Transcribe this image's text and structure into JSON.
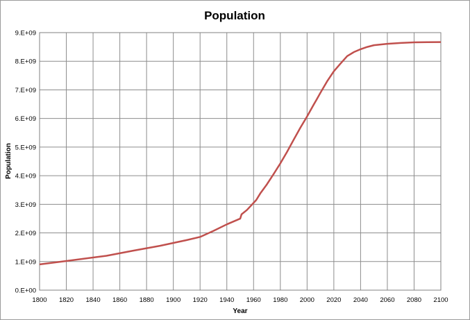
{
  "chart_data": {
    "type": "line",
    "title": "Population",
    "xlabel": "Year",
    "ylabel": "Population",
    "xlim": [
      1800,
      2100
    ],
    "ylim": [
      0,
      9000000000
    ],
    "grid": true,
    "legend": "none",
    "x_ticks": [
      "1800",
      "1820",
      "1840",
      "1860",
      "1880",
      "1900",
      "1920",
      "1940",
      "1960",
      "1980",
      "2000",
      "2020",
      "2040",
      "2060",
      "2080",
      "2100"
    ],
    "y_ticks": [
      "0.E+00",
      "1.E+09",
      "2.E+09",
      "3.E+09",
      "4.E+09",
      "5.E+09",
      "6.E+09",
      "7.E+09",
      "8.E+09",
      "9.E+09"
    ],
    "series": [
      {
        "color": "#c0504d",
        "x": [
          1800,
          1820,
          1850,
          1870,
          1890,
          1900,
          1910,
          1920,
          1930,
          1940,
          1950,
          1951,
          1955,
          1960,
          1962,
          1965,
          1970,
          1975,
          1980,
          1985,
          1990,
          1995,
          2000,
          2005,
          2007,
          2010,
          2015,
          2020,
          2025,
          2030,
          2035,
          2040,
          2045,
          2050,
          2060,
          2070,
          2080,
          2090,
          2100
        ],
        "y": [
          900000000,
          1020000000,
          1200000000,
          1380000000,
          1550000000,
          1650000000,
          1750000000,
          1860000000,
          2070000000,
          2300000000,
          2500000000,
          2650000000,
          2800000000,
          3050000000,
          3150000000,
          3380000000,
          3700000000,
          4060000000,
          4430000000,
          4830000000,
          5260000000,
          5680000000,
          6070000000,
          6490000000,
          6650000000,
          6900000000,
          7300000000,
          7650000000,
          7920000000,
          8180000000,
          8320000000,
          8420000000,
          8500000000,
          8560000000,
          8610000000,
          8640000000,
          8660000000,
          8665000000,
          8670000000
        ]
      }
    ]
  }
}
